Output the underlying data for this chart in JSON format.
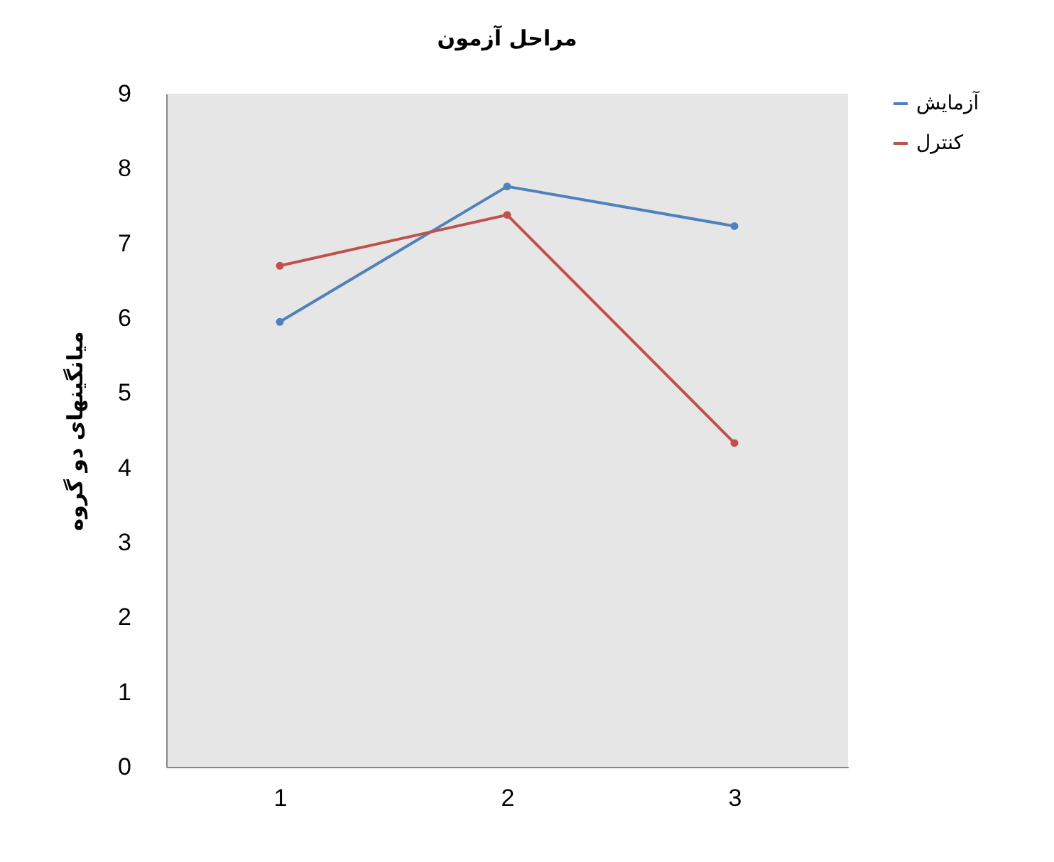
{
  "chart_data": {
    "type": "line",
    "title": "مراحل آزمون",
    "ylabel": "میانگینهای دو گروه",
    "categories": [
      "1",
      "2",
      "3"
    ],
    "series": [
      {
        "name": "آزمایش",
        "color": "#4f81bd",
        "values": [
          5.95,
          7.76,
          7.23
        ]
      },
      {
        "name": "کنترل",
        "color": "#c0504d",
        "values": [
          6.7,
          7.38,
          4.33
        ]
      }
    ],
    "ylim": [
      0,
      9
    ],
    "yticks": [
      0,
      1,
      2,
      3,
      4,
      5,
      6,
      7,
      8,
      9
    ],
    "grid": false,
    "legend": "right",
    "marker": "circle",
    "line_style": "solid"
  }
}
